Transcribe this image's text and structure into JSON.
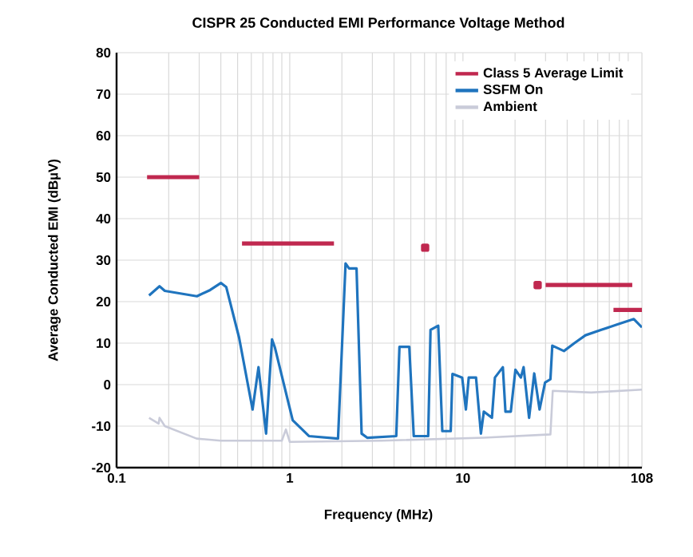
{
  "chart_data": {
    "type": "line",
    "title": "CISPR 25 Conducted EMI Performance Voltage Method",
    "xlabel": "Frequency (MHz)",
    "ylabel": "Average Conducted EMI (dBµV)",
    "log": "x",
    "xlim": [
      0.1,
      108
    ],
    "xticks": [
      0.1,
      1,
      10,
      108
    ],
    "ylim": [
      -20,
      80
    ],
    "yticks": [
      -20,
      -10,
      0,
      10,
      20,
      30,
      40,
      50,
      60,
      70,
      80
    ],
    "grid": true,
    "legend": "top right",
    "series": [
      {
        "name": "Class 5 Average Limit",
        "color": "#c0284f",
        "x": [
          0.15,
          0.3
        ],
        "values": [
          50,
          50
        ]
      },
      {
        "name": "SSFM On",
        "color": "#1f74be",
        "x": [
          0.154,
          0.177,
          0.19,
          0.291,
          0.347,
          0.4,
          0.43,
          0.51,
          0.61,
          0.66,
          0.73,
          0.79,
          0.82,
          1.04,
          1.29,
          1.9,
          2.1,
          2.2,
          2.43,
          2.6,
          2.8,
          4.12,
          4.3,
          4.9,
          5.2,
          6.3,
          6.5,
          7.2,
          7.6,
          8.5,
          8.7,
          9.9,
          10.4,
          10.8,
          11.9,
          12.7,
          13.2,
          14.7,
          15.3,
          17.0,
          17.6,
          18.9,
          20.1,
          21.6,
          22.4,
          24.1,
          25.8,
          27.7,
          29.8,
          32,
          32.8,
          38.3,
          44,
          51,
          63,
          78,
          97,
          108
        ],
        "values": [
          21.5,
          23.7,
          22.6,
          21.3,
          22.8,
          24.5,
          23.5,
          11.3,
          -6,
          4.2,
          -11.8,
          10.9,
          9,
          -8.6,
          -12.4,
          -13,
          29.2,
          28,
          28,
          -11.8,
          -12.8,
          -12.4,
          9.1,
          9.1,
          -12.4,
          -12.4,
          13.2,
          14.2,
          -11.2,
          -11.2,
          2.6,
          1.7,
          -6,
          1.7,
          1.7,
          -11.8,
          -6.5,
          -8,
          1.7,
          4.2,
          -6.5,
          -6.5,
          3.6,
          1.7,
          4.2,
          -8,
          2.7,
          -6,
          0.5,
          1.3,
          9.4,
          8.1,
          10,
          11.9,
          13.2,
          14.5,
          15.8,
          13.8
        ]
      },
      {
        "name": "Ambient",
        "color": "#c9cbd9",
        "x": [
          0.154,
          0.175,
          0.177,
          0.19,
          0.29,
          0.4,
          0.9,
          0.95,
          1.0,
          3.4,
          13.2,
          32,
          33,
          55,
          108
        ],
        "values": [
          -8,
          -9.4,
          -8,
          -10,
          -13,
          -13.5,
          -13.5,
          -10.8,
          -13.8,
          -13.5,
          -12.8,
          -12,
          -1.5,
          -1.9,
          -1.2
        ]
      },
      {
        "color": "#c0284f",
        "x": [
          0.53,
          1.8
        ],
        "values": [
          34,
          34
        ]
      },
      {
        "color": "#c0284f",
        "x": [
          30,
          95
        ],
        "values": [
          24,
          24
        ]
      },
      {
        "color": "#c0284f",
        "x": [
          74,
          108
        ],
        "values": [
          18,
          18
        ]
      },
      {
        "type": "scatter",
        "color": "#c0284f",
        "x": [
          6.05,
          27
        ],
        "values": [
          33,
          24
        ]
      }
    ]
  }
}
